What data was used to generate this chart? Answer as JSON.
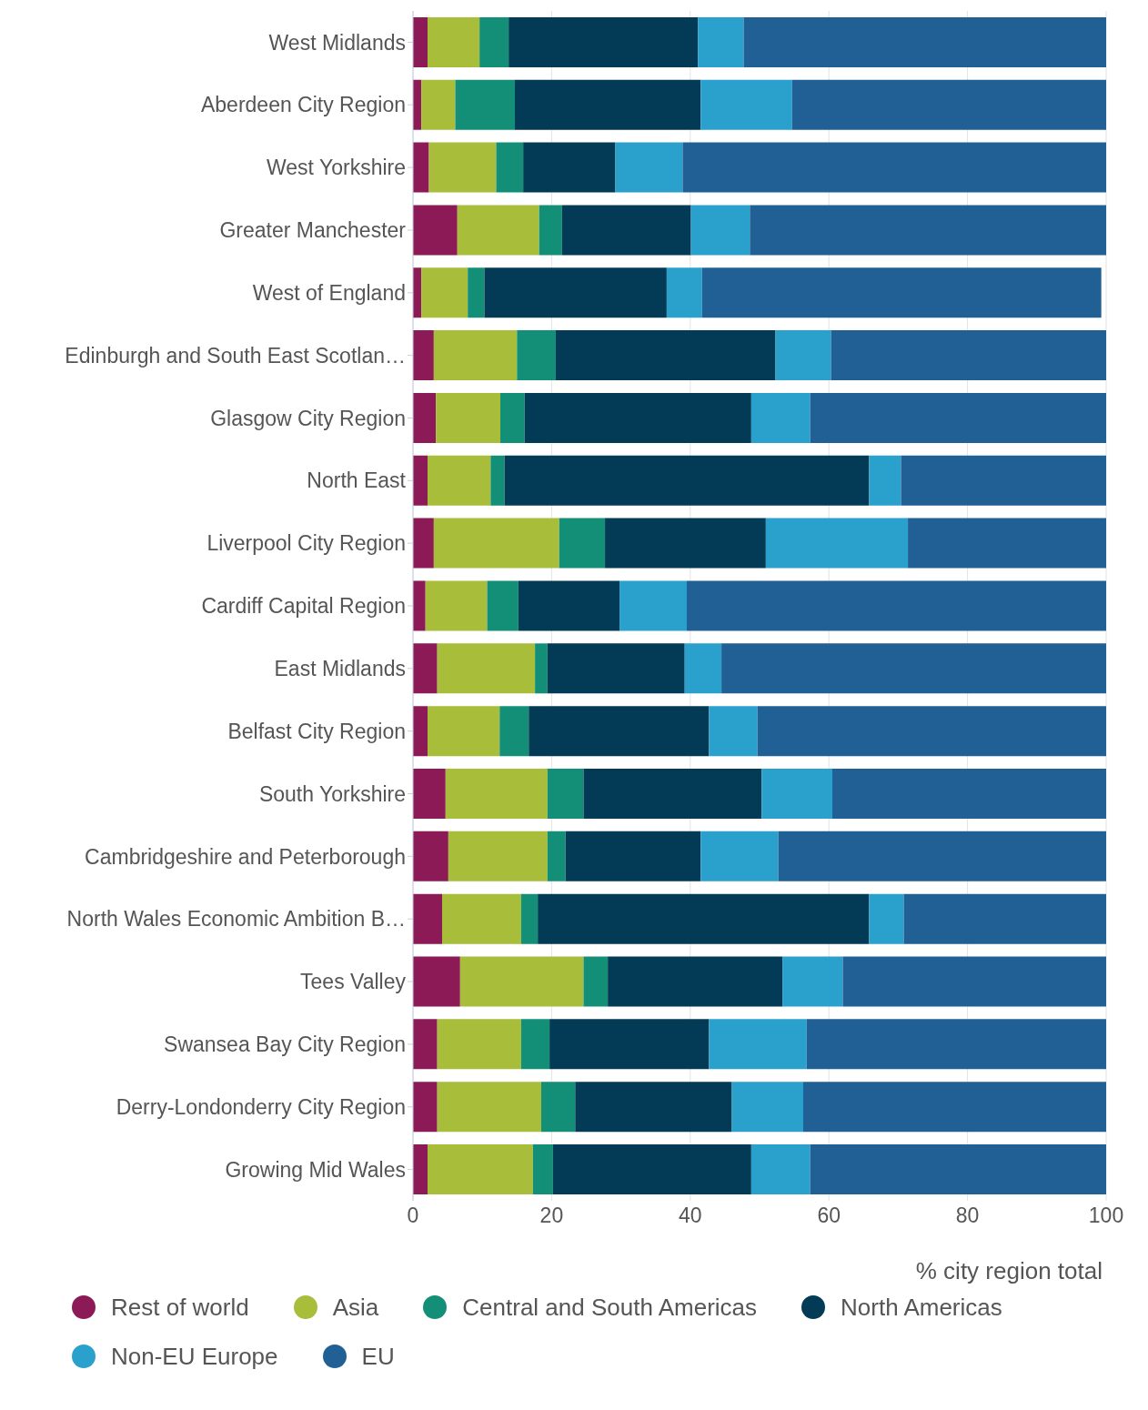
{
  "chart_data": {
    "type": "bar",
    "orientation": "horizontal",
    "stacked": true,
    "xlabel": "% city region total",
    "categories": [
      "West Midlands",
      "Aberdeen City Region",
      "West Yorkshire",
      "Greater Manchester",
      "West of England",
      "Edinburgh and South East Scotlan…",
      "Glasgow City Region",
      "North East",
      "Liverpool City Region",
      "Cardiff Capital Region",
      "East Midlands",
      "Belfast City Region",
      "South Yorkshire",
      "Cambridgeshire and Peterborough",
      "North Wales Economic Ambition B…",
      "Tees Valley",
      "Swansea Bay City Region",
      "Derry-Londonderry City Region",
      "Growing Mid Wales"
    ],
    "series": [
      {
        "name": "Rest of world",
        "color": "#8b1a57",
        "values": [
          2.1,
          1.2,
          2.3,
          6.4,
          1.2,
          3.0,
          3.3,
          2.1,
          3.0,
          1.8,
          3.5,
          2.1,
          4.7,
          5.1,
          4.2,
          6.8,
          3.5,
          3.5,
          2.1
        ]
      },
      {
        "name": "Asia",
        "color": "#a8bd3a",
        "values": [
          7.5,
          4.9,
          9.7,
          11.8,
          6.7,
          12.0,
          9.3,
          9.1,
          18.1,
          8.9,
          14.1,
          10.4,
          14.7,
          14.3,
          11.4,
          17.8,
          12.1,
          15.0,
          15.2
        ]
      },
      {
        "name": "Central and South Americas",
        "color": "#148f77",
        "values": [
          4.2,
          8.6,
          3.9,
          3.3,
          2.4,
          5.6,
          3.5,
          2.0,
          6.6,
          4.5,
          1.8,
          4.2,
          5.2,
          2.6,
          2.4,
          3.5,
          4.1,
          4.9,
          2.9
        ]
      },
      {
        "name": "North Americas",
        "color": "#033a55",
        "values": [
          27.3,
          26.8,
          13.3,
          18.6,
          26.3,
          31.7,
          32.7,
          52.6,
          23.2,
          14.6,
          19.8,
          26.0,
          25.7,
          19.5,
          47.8,
          25.2,
          23.0,
          22.6,
          28.6
        ]
      },
      {
        "name": "Non-EU Europe",
        "color": "#2aa0cd",
        "values": [
          6.6,
          13.2,
          9.7,
          8.5,
          5.1,
          8.0,
          8.5,
          4.6,
          20.5,
          9.7,
          5.3,
          7.0,
          10.2,
          11.2,
          5.0,
          8.7,
          14.1,
          10.3,
          8.5
        ]
      },
      {
        "name": "EU",
        "color": "#216095",
        "values": [
          52.3,
          45.3,
          61.1,
          51.4,
          57.6,
          39.7,
          42.7,
          29.6,
          28.6,
          60.5,
          55.5,
          50.3,
          39.5,
          47.3,
          29.2,
          38.0,
          43.2,
          43.7,
          42.7
        ]
      }
    ],
    "xlim": [
      0,
      100
    ],
    "xticks": [
      0,
      20,
      40,
      60,
      80,
      100
    ],
    "grid": "x",
    "legend": "bottom",
    "marker": "circle"
  }
}
